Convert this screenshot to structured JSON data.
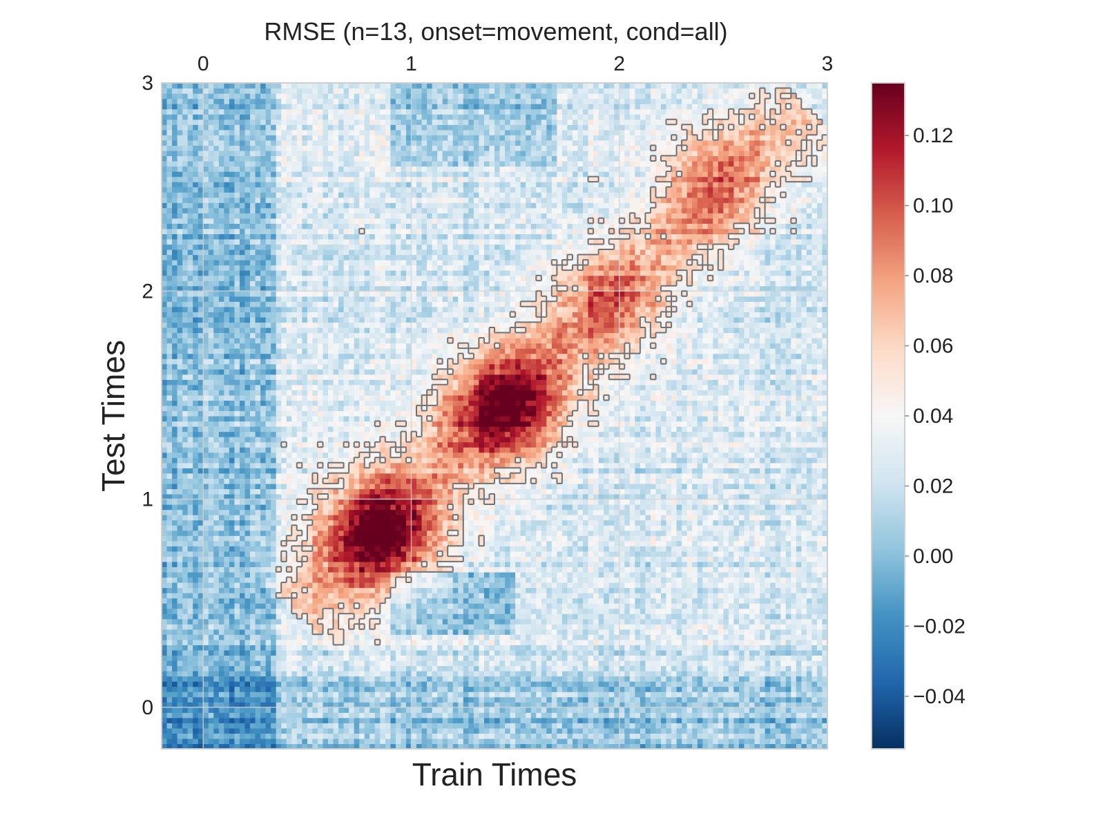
{
  "chart_data": {
    "type": "heatmap",
    "title": "RMSE (n=13, onset=movement, cond=all)",
    "xlabel": "Train Times",
    "ylabel": "Test Times",
    "xlim": [
      -0.2,
      3.0
    ],
    "ylim": [
      -0.2,
      3.0
    ],
    "x_ticks": [
      {
        "value": 0,
        "label": "0"
      },
      {
        "value": 1,
        "label": "1"
      },
      {
        "value": 2,
        "label": "2"
      },
      {
        "value": 3,
        "label": "3"
      }
    ],
    "y_ticks": [
      {
        "value": 0,
        "label": "0"
      },
      {
        "value": 1,
        "label": "1"
      },
      {
        "value": 2,
        "label": "2"
      },
      {
        "value": 3,
        "label": "3"
      }
    ],
    "x_tick_position": "top",
    "grid": true,
    "colormap": "RdBu_r",
    "colormap_stops": [
      "#053061",
      "#2166ac",
      "#4393c3",
      "#92c5de",
      "#d1e5f0",
      "#f7f7f7",
      "#fddbc7",
      "#f4a582",
      "#d6604d",
      "#b2182b",
      "#67001f"
    ],
    "colorbar": {
      "vmin": -0.055,
      "vmax": 0.135,
      "ticks": [
        {
          "value": 0.12,
          "label": "0.12"
        },
        {
          "value": 0.1,
          "label": "0.10"
        },
        {
          "value": 0.08,
          "label": "0.08"
        },
        {
          "value": 0.06,
          "label": "0.06"
        },
        {
          "value": 0.04,
          "label": "0.04"
        },
        {
          "value": 0.02,
          "label": "0.02"
        },
        {
          "value": 0.0,
          "label": "0.00"
        },
        {
          "value": -0.02,
          "label": "−0.02"
        },
        {
          "value": -0.04,
          "label": "−0.04"
        }
      ]
    },
    "grid_cells": 128,
    "field": {
      "baseline": 0.025,
      "peaks": [
        {
          "x": 0.85,
          "y": 0.85,
          "amplitude": 0.09
        },
        {
          "x": 1.45,
          "y": 1.45,
          "amplitude": 0.085
        },
        {
          "x": 1.95,
          "y": 1.95,
          "amplitude": 0.045
        },
        {
          "x": 2.45,
          "y": 2.5,
          "amplitude": 0.035
        }
      ],
      "diagonal_amplitude": 0.035,
      "low_regions": [
        {
          "x_min": -0.2,
          "x_max": 0.35,
          "y_min": -0.2,
          "y_max": 3.0,
          "delta": -0.025
        },
        {
          "x_min": -0.2,
          "x_max": 3.0,
          "y_min": -0.2,
          "y_max": 0.15,
          "delta": -0.02
        },
        {
          "x_min": 0.9,
          "x_max": 1.7,
          "y_min": 2.6,
          "y_max": 3.0,
          "delta": -0.02
        },
        {
          "x_min": 0.9,
          "x_max": 1.5,
          "y_min": 0.35,
          "y_max": 0.65,
          "delta": -0.025
        }
      ],
      "significance_contour_level": 0.052
    }
  }
}
